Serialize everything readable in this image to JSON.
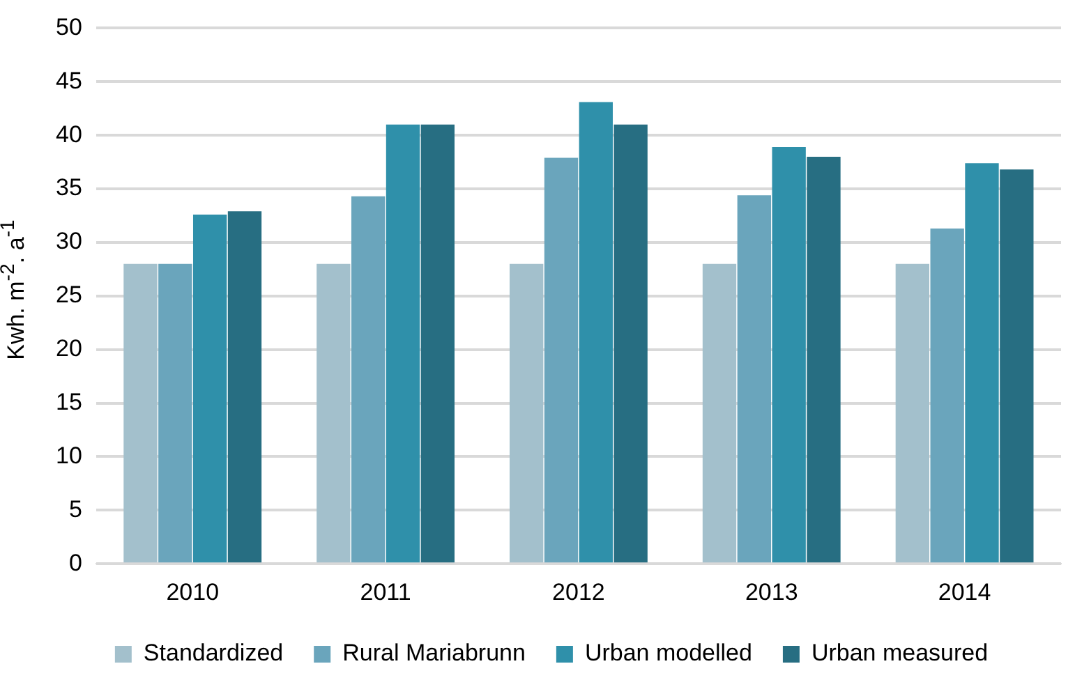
{
  "chart_data": {
    "type": "bar",
    "ylabel": "Kwh. m$^{-2}$. a$^{-1}$",
    "categories": [
      "2010",
      "2011",
      "2012",
      "2013",
      "2014"
    ],
    "series": [
      {
        "name": "Standardized",
        "color": "#a3c0cc",
        "values": [
          28,
          28,
          28,
          28,
          28
        ]
      },
      {
        "name": "Rural Mariabrunn",
        "color": "#6aa5bc",
        "values": [
          28,
          34.3,
          37.9,
          34.4,
          31.3
        ]
      },
      {
        "name": "Urban modelled",
        "color": "#2f90aa",
        "values": [
          32.6,
          41,
          43.1,
          38.9,
          37.4
        ]
      },
      {
        "name": "Urban measured",
        "color": "#276e82",
        "values": [
          32.9,
          41,
          41,
          38,
          36.8
        ]
      }
    ],
    "ylim": [
      0,
      50
    ],
    "yticks": [
      0,
      5,
      10,
      15,
      20,
      25,
      30,
      35,
      40,
      45,
      50
    ],
    "grid": "y",
    "legend": "bottom"
  }
}
